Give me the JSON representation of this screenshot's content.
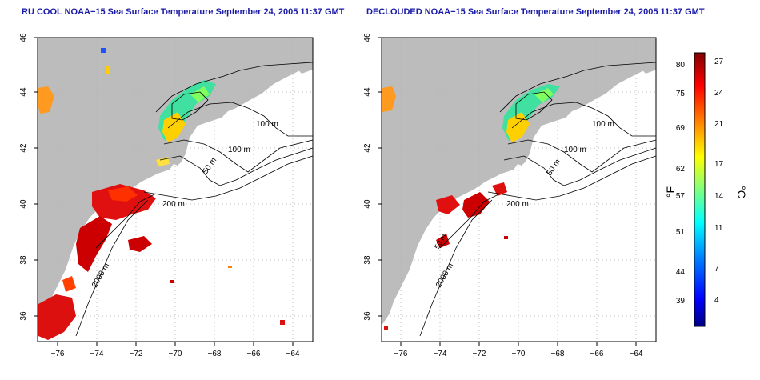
{
  "left_panel": {
    "title": "RU COOL NOAA−15 Sea Surface Temperature September 24, 2005 11:37 GMT",
    "x_ticks": [
      "−76",
      "−74",
      "−72",
      "−70",
      "−68",
      "−66",
      "−64"
    ],
    "y_ticks": [
      "46",
      "44",
      "42",
      "40",
      "38",
      "36"
    ],
    "contour_labels": [
      "100 m",
      "100 m",
      "50 m",
      "200 m",
      "2000 m"
    ]
  },
  "right_panel": {
    "title": "DECLOUDED NOAA−15 Sea Surface Temperature September 24, 2005 11:37 GMT",
    "x_ticks": [
      "−76",
      "−74",
      "−72",
      "−70",
      "−68",
      "−66",
      "−64"
    ],
    "y_ticks": [
      "46",
      "44",
      "42",
      "40",
      "38",
      "36"
    ],
    "contour_labels": [
      "100 m",
      "100 m",
      "50 m",
      "200 m",
      "2000 m",
      "50 m"
    ]
  },
  "colorbar": {
    "f_label": "°F",
    "c_label": "°C",
    "f_ticks": [
      "80",
      "75",
      "69",
      "62",
      "57",
      "51",
      "44",
      "39"
    ],
    "c_ticks": [
      "27",
      "24",
      "21",
      "17",
      "14",
      "11",
      "7",
      "4"
    ],
    "colors": [
      "#000080",
      "#0000ff",
      "#0080ff",
      "#00ffff",
      "#80ff80",
      "#ffff00",
      "#ff8000",
      "#ff0000",
      "#800000"
    ]
  },
  "colors": {
    "land": "#bcbcbc",
    "title": "#1a1aa6",
    "contour": "#000000",
    "grid": "#b0b0b0"
  }
}
